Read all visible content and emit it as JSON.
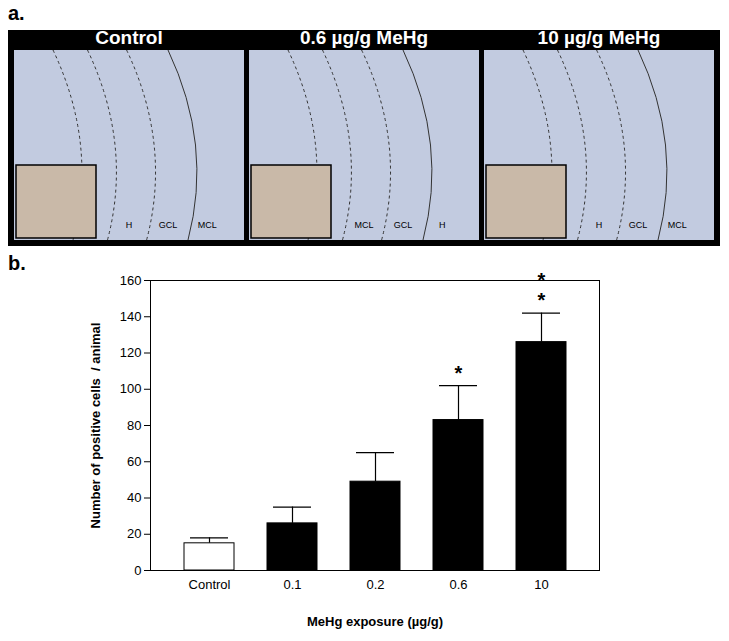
{
  "panel_a": {
    "label": "a.",
    "images": [
      {
        "title": "Control",
        "regions": [
          "H",
          "GCL",
          "MCL"
        ]
      },
      {
        "title": "0.6 µg/g MeHg",
        "regions": [
          "MCL",
          "GCL",
          "H"
        ]
      },
      {
        "title": "10 µg/g MeHg",
        "regions": [
          "H",
          "GCL",
          "MCL"
        ]
      }
    ]
  },
  "chart_data": {
    "type": "bar",
    "panel_label": "b.",
    "x_label": "MeHg exposure (µg/g)",
    "y_label": "Number of positive cells  / animal",
    "categories": [
      "Control",
      "0.1",
      "0.2",
      "0.6",
      "10"
    ],
    "values": [
      15,
      26,
      49,
      83,
      126
    ],
    "error": [
      3,
      9,
      16,
      19,
      16
    ],
    "colors": [
      "#ffffff",
      "#000000",
      "#000000",
      "#000000",
      "#000000"
    ],
    "annotations": [
      {
        "category": "0.6",
        "text": "*"
      },
      {
        "category": "10",
        "text": "*\n*"
      }
    ],
    "ylim": [
      0,
      160
    ],
    "yticks": [
      0,
      20,
      40,
      60,
      80,
      100,
      120,
      140,
      160
    ]
  }
}
